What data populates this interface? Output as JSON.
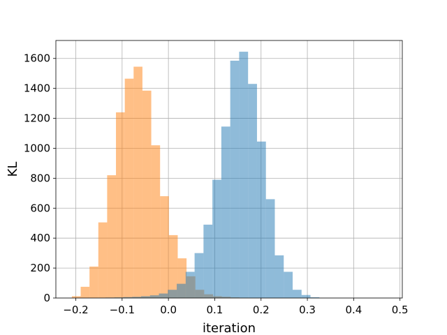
{
  "chart_data": {
    "type": "histogram",
    "title": "",
    "xlabel": "iteration",
    "ylabel": "KL",
    "xlim": [
      -0.243,
      0.505
    ],
    "ylim": [
      0,
      1720
    ],
    "xticks": [
      -0.2,
      -0.1,
      0.0,
      0.1,
      0.2,
      0.3,
      0.4,
      0.5
    ],
    "xtick_labels": [
      "−0.2",
      "−0.1",
      "0.0",
      "0.1",
      "0.2",
      "0.3",
      "0.4",
      "0.5"
    ],
    "yticks": [
      0,
      200,
      400,
      600,
      800,
      1000,
      1200,
      1400,
      1600
    ],
    "ytick_labels": [
      "0",
      "200",
      "400",
      "600",
      "800",
      "1000",
      "1200",
      "1400",
      "1600"
    ],
    "grid": true,
    "legend": "none",
    "series": [
      {
        "color": "#ff7f0e",
        "opacity": 0.5,
        "bin_start": -0.2085,
        "bin_width": 0.01905,
        "counts": [
          12,
          75,
          210,
          505,
          820,
          1240,
          1465,
          1545,
          1385,
          1020,
          680,
          420,
          265,
          145,
          55,
          25,
          12,
          8,
          4,
          2
        ]
      },
      {
        "color": "#1f77b4",
        "opacity": 0.5,
        "bin_start": -0.1745,
        "bin_width": 0.01925,
        "counts": [
          1,
          2,
          3,
          4,
          6,
          8,
          12,
          18,
          30,
          55,
          95,
          175,
          300,
          490,
          790,
          1145,
          1585,
          1645,
          1430,
          1045,
          660,
          285,
          175,
          55,
          20,
          5
        ]
      }
    ]
  }
}
